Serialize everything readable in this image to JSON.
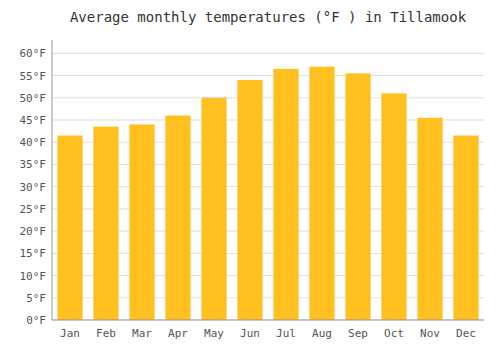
{
  "chart_data": {
    "type": "bar",
    "title": "Average monthly temperatures (°F ) in Tillamook",
    "categories": [
      "Jan",
      "Feb",
      "Mar",
      "Apr",
      "May",
      "Jun",
      "Jul",
      "Aug",
      "Sep",
      "Oct",
      "Nov",
      "Dec"
    ],
    "values": [
      41.5,
      43.5,
      44.0,
      46.0,
      50.0,
      54.0,
      56.5,
      57.0,
      55.5,
      51.0,
      45.5,
      41.5
    ],
    "color": "#FFC020",
    "ylim": [
      0,
      63
    ],
    "yticks": [
      {
        "value": 0,
        "label": "0°F"
      },
      {
        "value": 5,
        "label": "5°F"
      },
      {
        "value": 10,
        "label": "10°F"
      },
      {
        "value": 15,
        "label": "15°F"
      },
      {
        "value": 20,
        "label": "20°F"
      },
      {
        "value": 25,
        "label": "25°F"
      },
      {
        "value": 30,
        "label": "30°F"
      },
      {
        "value": 35,
        "label": "35°F"
      },
      {
        "value": 40,
        "label": "40°F"
      },
      {
        "value": 45,
        "label": "45°F"
      },
      {
        "value": 50,
        "label": "50°F"
      },
      {
        "value": 55,
        "label": "55°F"
      },
      {
        "value": 60,
        "label": "60°F"
      }
    ],
    "grid": true
  }
}
